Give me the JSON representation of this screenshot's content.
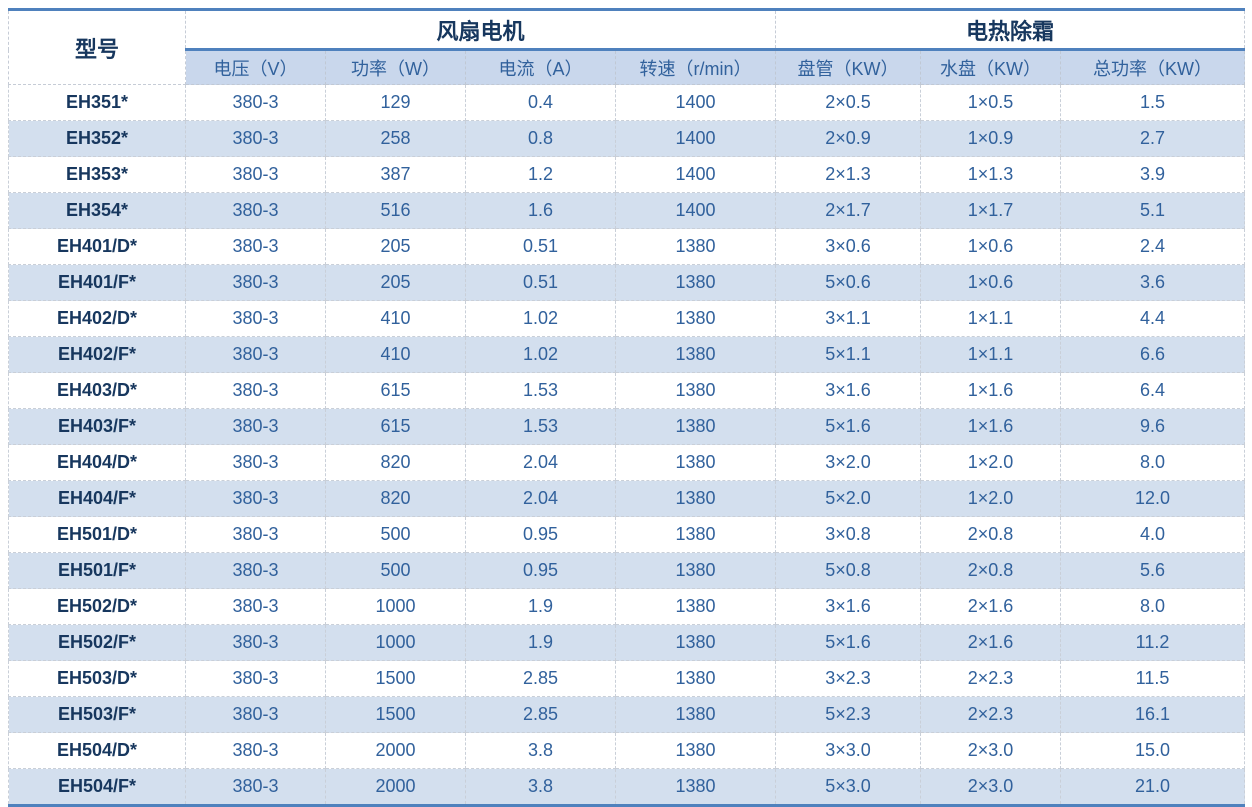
{
  "colors": {
    "accent_line": "#4F81BD",
    "dark_text": "#17375E",
    "body_text": "#31619C",
    "subheader_bg": "#C9D7EC",
    "alt_row_bg": "#D3DFEE"
  },
  "table": {
    "header": {
      "model": "型号",
      "groups": [
        {
          "label": "风扇电机"
        },
        {
          "label": "电热除霜"
        }
      ],
      "columns": [
        "电压（V）",
        "功率（W）",
        "电流（A）",
        "转速（r/min）",
        "盘管（KW）",
        "水盘（KW）",
        "总功率（KW）"
      ]
    },
    "rows": [
      {
        "model": "EH351*",
        "values": [
          "380-3",
          "129",
          "0.4",
          "1400",
          "2×0.5",
          "1×0.5",
          "1.5"
        ]
      },
      {
        "model": "EH352*",
        "values": [
          "380-3",
          "258",
          "0.8",
          "1400",
          "2×0.9",
          "1×0.9",
          "2.7"
        ]
      },
      {
        "model": "EH353*",
        "values": [
          "380-3",
          "387",
          "1.2",
          "1400",
          "2×1.3",
          "1×1.3",
          "3.9"
        ]
      },
      {
        "model": "EH354*",
        "values": [
          "380-3",
          "516",
          "1.6",
          "1400",
          "2×1.7",
          "1×1.7",
          "5.1"
        ]
      },
      {
        "model": "EH401/D*",
        "values": [
          "380-3",
          "205",
          "0.51",
          "1380",
          "3×0.6",
          "1×0.6",
          "2.4"
        ]
      },
      {
        "model": "EH401/F*",
        "values": [
          "380-3",
          "205",
          "0.51",
          "1380",
          "5×0.6",
          "1×0.6",
          "3.6"
        ]
      },
      {
        "model": "EH402/D*",
        "values": [
          "380-3",
          "410",
          "1.02",
          "1380",
          "3×1.1",
          "1×1.1",
          "4.4"
        ]
      },
      {
        "model": "EH402/F*",
        "values": [
          "380-3",
          "410",
          "1.02",
          "1380",
          "5×1.1",
          "1×1.1",
          "6.6"
        ]
      },
      {
        "model": "EH403/D*",
        "values": [
          "380-3",
          "615",
          "1.53",
          "1380",
          "3×1.6",
          "1×1.6",
          "6.4"
        ]
      },
      {
        "model": "EH403/F*",
        "values": [
          "380-3",
          "615",
          "1.53",
          "1380",
          "5×1.6",
          "1×1.6",
          "9.6"
        ]
      },
      {
        "model": "EH404/D*",
        "values": [
          "380-3",
          "820",
          "2.04",
          "1380",
          "3×2.0",
          "1×2.0",
          "8.0"
        ]
      },
      {
        "model": "EH404/F*",
        "values": [
          "380-3",
          "820",
          "2.04",
          "1380",
          "5×2.0",
          "1×2.0",
          "12.0"
        ]
      },
      {
        "model": "EH501/D*",
        "values": [
          "380-3",
          "500",
          "0.95",
          "1380",
          "3×0.8",
          "2×0.8",
          "4.0"
        ]
      },
      {
        "model": "EH501/F*",
        "values": [
          "380-3",
          "500",
          "0.95",
          "1380",
          "5×0.8",
          "2×0.8",
          "5.6"
        ]
      },
      {
        "model": "EH502/D*",
        "values": [
          "380-3",
          "1000",
          "1.9",
          "1380",
          "3×1.6",
          "2×1.6",
          "8.0"
        ]
      },
      {
        "model": "EH502/F*",
        "values": [
          "380-3",
          "1000",
          "1.9",
          "1380",
          "5×1.6",
          "2×1.6",
          "11.2"
        ]
      },
      {
        "model": "EH503/D*",
        "values": [
          "380-3",
          "1500",
          "2.85",
          "1380",
          "3×2.3",
          "2×2.3",
          "11.5"
        ]
      },
      {
        "model": "EH503/F*",
        "values": [
          "380-3",
          "1500",
          "2.85",
          "1380",
          "5×2.3",
          "2×2.3",
          "16.1"
        ]
      },
      {
        "model": "EH504/D*",
        "values": [
          "380-3",
          "2000",
          "3.8",
          "1380",
          "3×3.0",
          "2×3.0",
          "15.0"
        ]
      },
      {
        "model": "EH504/F*",
        "values": [
          "380-3",
          "2000",
          "3.8",
          "1380",
          "5×3.0",
          "2×3.0",
          "21.0"
        ]
      }
    ]
  }
}
